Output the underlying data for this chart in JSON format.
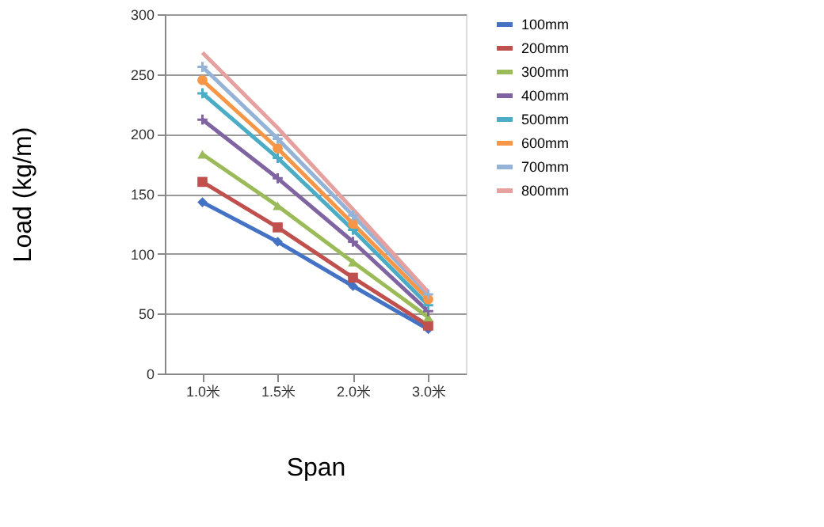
{
  "chart_data": {
    "type": "line",
    "xlabel": "Span",
    "ylabel": "Load (kg/m)",
    "categories": [
      "1.0米",
      "1.5米",
      "2.0米",
      "3.0米"
    ],
    "ylim": [
      0,
      300
    ],
    "yticks": [
      0,
      50,
      100,
      150,
      200,
      250,
      300
    ],
    "grid": "y",
    "legend": "right",
    "series": [
      {
        "name": "100mm",
        "color": "#4472c4",
        "marker": "diamond",
        "values": [
          143,
          110,
          73,
          37
        ]
      },
      {
        "name": "200mm",
        "color": "#c0504d",
        "marker": "square",
        "values": [
          160,
          122,
          80,
          40
        ]
      },
      {
        "name": "300mm",
        "color": "#9bbb59",
        "marker": "triangle",
        "values": [
          183,
          140,
          93,
          47
        ]
      },
      {
        "name": "400mm",
        "color": "#8064a2",
        "marker": "cross",
        "values": [
          212,
          163,
          110,
          52
        ]
      },
      {
        "name": "500mm",
        "color": "#4bacc6",
        "marker": "cross",
        "values": [
          234,
          180,
          120,
          57
        ]
      },
      {
        "name": "600mm",
        "color": "#f79646",
        "marker": "circle",
        "values": [
          245,
          188,
          125,
          62
        ]
      },
      {
        "name": "700mm",
        "color": "#95b3d7",
        "marker": "cross",
        "values": [
          256,
          196,
          132,
          66
        ]
      },
      {
        "name": "800mm",
        "color": "#e6a09e",
        "marker": "none",
        "values": [
          268,
          205,
          137,
          68
        ]
      }
    ]
  }
}
